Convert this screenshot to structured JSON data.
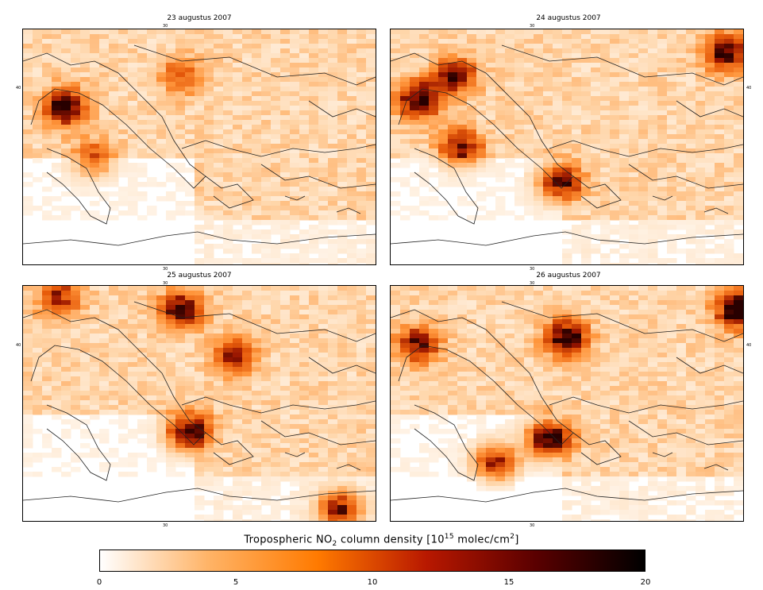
{
  "panels": [
    {
      "id": "p1",
      "title": "23 augustus 2007",
      "lat_label": "40",
      "lon_label_top": "30",
      "lon_label_bottom": "30"
    },
    {
      "id": "p2",
      "title": "24 augustus 2007",
      "lat_label": "40",
      "lon_label_top": "30",
      "lon_label_bottom": "30"
    },
    {
      "id": "p3",
      "title": "25 augustus 2007",
      "lat_label": "40",
      "lon_label_top": "30",
      "lon_label_bottom": "30"
    },
    {
      "id": "p4",
      "title": "26 augustus 2007",
      "lat_label": "40",
      "lon_label_top": "30",
      "lon_label_bottom": "30"
    }
  ],
  "colorbar": {
    "title_prefix": "Tropospheric NO",
    "title_sub": "2",
    "title_mid": " column density [10",
    "title_sup": "15",
    "title_suffix": " molec/cm",
    "title_sup2": "2",
    "title_end": "]",
    "ticks": [
      "0",
      "5",
      "10",
      "15",
      "20"
    ],
    "range": [
      0,
      20
    ],
    "colors": [
      "#ffffff",
      "#ffb366",
      "#ff7a00",
      "#b81800",
      "#5a0000",
      "#000000"
    ]
  }
}
